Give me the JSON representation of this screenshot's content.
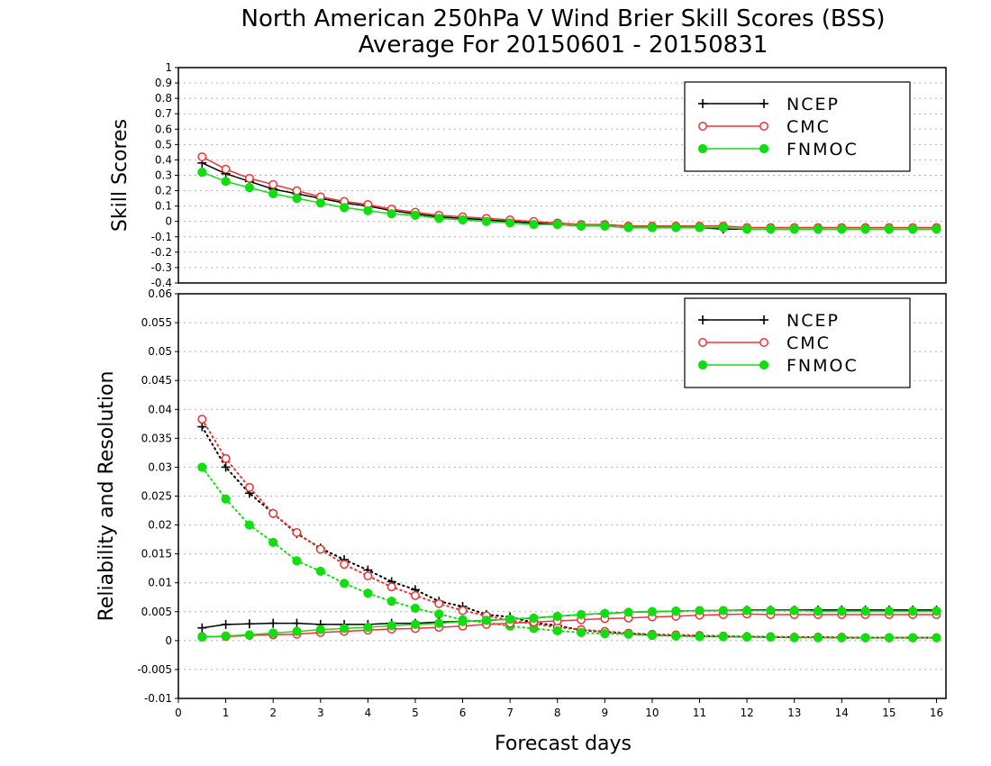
{
  "title_line1": "North American 250hPa V Wind Brier Skill Scores (BSS)",
  "title_line2": "Average For 20150601 - 20150831",
  "xlabel": "Forecast days",
  "colors": {
    "NCEP": "#000000",
    "CMC": "#ee3333",
    "FNMOC": "#11dd11"
  },
  "chart_data": [
    {
      "type": "line",
      "ylabel": "Skill Scores",
      "xlim": [
        0,
        16.2
      ],
      "ylim": [
        -0.4,
        1
      ],
      "yticks": [
        "-0.4",
        "-0.3",
        "-0.2",
        "-0.1",
        "0",
        "0.1",
        "0.2",
        "0.3",
        "0.4",
        "0.5",
        "0.6",
        "0.7",
        "0.8",
        "0.9",
        "1"
      ],
      "x": [
        0.5,
        1,
        1.5,
        2,
        2.5,
        3,
        3.5,
        4,
        4.5,
        5,
        5.5,
        6,
        6.5,
        7,
        7.5,
        8,
        8.5,
        9,
        9.5,
        10,
        10.5,
        11,
        11.5,
        12,
        12.5,
        13,
        13.5,
        14,
        14.5,
        15,
        15.5,
        16
      ],
      "legend": [
        "NCEP",
        "CMC",
        "FNMOC"
      ],
      "series": [
        {
          "name": "NCEP",
          "style": "solid",
          "marker": "plus",
          "values": [
            0.38,
            0.31,
            0.26,
            0.21,
            0.18,
            0.15,
            0.12,
            0.1,
            0.07,
            0.05,
            0.03,
            0.02,
            0.01,
            0.0,
            -0.01,
            -0.02,
            -0.03,
            -0.03,
            -0.04,
            -0.04,
            -0.04,
            -0.04,
            -0.05,
            -0.05,
            -0.05,
            -0.05,
            -0.05,
            -0.05,
            -0.05,
            -0.05,
            -0.05,
            -0.05
          ]
        },
        {
          "name": "CMC",
          "style": "solid",
          "marker": "open-circle",
          "values": [
            0.42,
            0.34,
            0.28,
            0.24,
            0.2,
            0.16,
            0.13,
            0.11,
            0.08,
            0.06,
            0.04,
            0.03,
            0.02,
            0.01,
            0.0,
            -0.01,
            -0.02,
            -0.02,
            -0.03,
            -0.03,
            -0.03,
            -0.03,
            -0.03,
            -0.04,
            -0.04,
            -0.04,
            -0.04,
            -0.04,
            -0.04,
            -0.04,
            -0.04,
            -0.04
          ]
        },
        {
          "name": "FNMOC",
          "style": "solid",
          "marker": "filled-circle",
          "values": [
            0.32,
            0.26,
            0.22,
            0.18,
            0.15,
            0.12,
            0.09,
            0.07,
            0.05,
            0.04,
            0.02,
            0.01,
            0.0,
            -0.01,
            -0.02,
            -0.02,
            -0.03,
            -0.03,
            -0.04,
            -0.04,
            -0.04,
            -0.04,
            -0.04,
            -0.05,
            -0.05,
            -0.05,
            -0.05,
            -0.05,
            -0.05,
            -0.05,
            -0.05,
            -0.05
          ]
        }
      ]
    },
    {
      "type": "line",
      "ylabel": "Reliability and Resolution",
      "xlim": [
        0,
        16.2
      ],
      "ylim": [
        -0.01,
        0.06
      ],
      "yticks": [
        "-0.01",
        "-0.005",
        "0",
        "0.005",
        "0.01",
        "0.015",
        "0.02",
        "0.025",
        "0.03",
        "0.035",
        "0.04",
        "0.045",
        "0.05",
        "0.055",
        "0.06"
      ],
      "xticks": [
        "0",
        "1",
        "2",
        "3",
        "4",
        "5",
        "6",
        "7",
        "8",
        "9",
        "10",
        "11",
        "12",
        "13",
        "14",
        "15",
        "16"
      ],
      "x": [
        0.5,
        1,
        1.5,
        2,
        2.5,
        3,
        3.5,
        4,
        4.5,
        5,
        5.5,
        6,
        6.5,
        7,
        7.5,
        8,
        8.5,
        9,
        9.5,
        10,
        10.5,
        11,
        11.5,
        12,
        12.5,
        13,
        13.5,
        14,
        14.5,
        15,
        15.5,
        16
      ],
      "legend": [
        "NCEP",
        "CMC",
        "FNMOC"
      ],
      "series": [
        {
          "name": "NCEP",
          "style": "dotted",
          "marker": "plus",
          "values": [
            0.037,
            0.03,
            0.0255,
            0.022,
            0.0185,
            0.016,
            0.014,
            0.0122,
            0.0102,
            0.0088,
            0.0068,
            0.0059,
            0.0045,
            0.0041,
            0.0031,
            0.0026,
            0.0018,
            0.0015,
            0.0012,
            0.001,
            0.0009,
            0.0008,
            0.0007,
            0.0007,
            0.0006,
            0.0006,
            0.0006,
            0.0005,
            0.0005,
            0.0005,
            0.0005,
            0.0005
          ]
        },
        {
          "name": "CMC",
          "style": "dotted",
          "marker": "open-circle",
          "values": [
            0.0383,
            0.0315,
            0.0265,
            0.022,
            0.0187,
            0.0158,
            0.0132,
            0.0112,
            0.0093,
            0.0078,
            0.0064,
            0.0052,
            0.0043,
            0.0035,
            0.0029,
            0.0023,
            0.0019,
            0.0016,
            0.0013,
            0.0011,
            0.001,
            0.0009,
            0.0008,
            0.0007,
            0.0007,
            0.0006,
            0.0006,
            0.0006,
            0.0005,
            0.0005,
            0.0005,
            0.0005
          ]
        },
        {
          "name": "FNMOC",
          "style": "dotted",
          "marker": "filled-circle",
          "values": [
            0.03,
            0.0245,
            0.02,
            0.017,
            0.0138,
            0.012,
            0.0099,
            0.0082,
            0.0068,
            0.0056,
            0.0046,
            0.0036,
            0.0031,
            0.0025,
            0.0021,
            0.0017,
            0.0014,
            0.0012,
            0.0011,
            0.0009,
            0.0008,
            0.0007,
            0.0007,
            0.0006,
            0.0006,
            0.0005,
            0.0005,
            0.0005,
            0.0005,
            0.0005,
            0.0005,
            0.0005
          ]
        },
        {
          "name": "NCEP",
          "style": "solid",
          "marker": "plus",
          "values": [
            0.0022,
            0.0028,
            0.0029,
            0.003,
            0.003,
            0.0028,
            0.0028,
            0.0028,
            0.003,
            0.003,
            0.0032,
            0.0033,
            0.0035,
            0.0037,
            0.0039,
            0.0042,
            0.0045,
            0.0047,
            0.0049,
            0.005,
            0.0051,
            0.0052,
            0.0052,
            0.0053,
            0.0053,
            0.0053,
            0.0053,
            0.0053,
            0.0053,
            0.0053,
            0.0053,
            0.0053
          ]
        },
        {
          "name": "CMC",
          "style": "solid",
          "marker": "open-circle",
          "values": [
            0.0007,
            0.0007,
            0.0009,
            0.001,
            0.0011,
            0.0014,
            0.0016,
            0.0018,
            0.002,
            0.0021,
            0.0023,
            0.0025,
            0.0028,
            0.003,
            0.0032,
            0.0034,
            0.0036,
            0.0038,
            0.0039,
            0.0041,
            0.0042,
            0.0044,
            0.0045,
            0.0046,
            0.0045,
            0.0045,
            0.0045,
            0.0045,
            0.0045,
            0.0045,
            0.0045,
            0.0045
          ]
        },
        {
          "name": "FNMOC",
          "style": "solid",
          "marker": "filled-circle",
          "values": [
            0.0006,
            0.0008,
            0.001,
            0.0013,
            0.0016,
            0.0019,
            0.0021,
            0.0023,
            0.0026,
            0.0028,
            0.003,
            0.0033,
            0.0035,
            0.0037,
            0.0039,
            0.0042,
            0.0045,
            0.0047,
            0.0049,
            0.005,
            0.0051,
            0.0052,
            0.0052,
            0.0052,
            0.0052,
            0.0052,
            0.0051,
            0.0051,
            0.0051,
            0.0051,
            0.0051,
            0.0051
          ]
        }
      ]
    }
  ]
}
